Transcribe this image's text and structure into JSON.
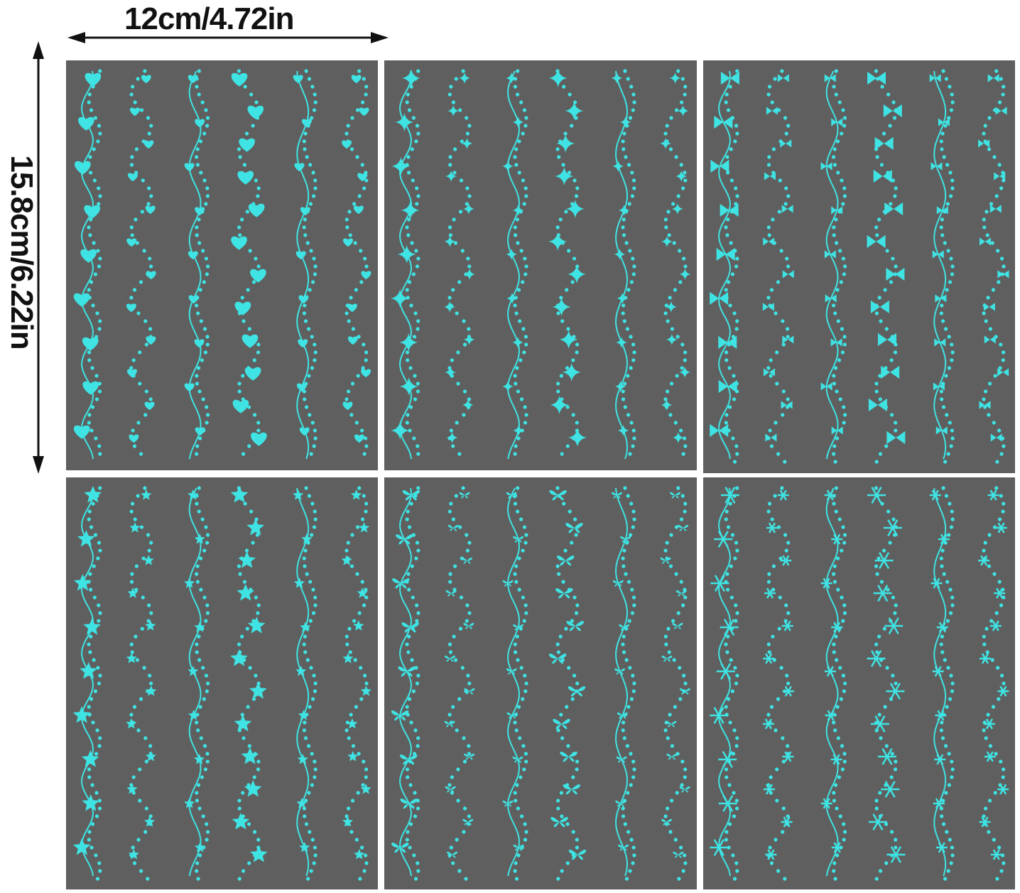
{
  "dimensions": {
    "width_label": "12cm/4.72in",
    "height_label": "15.8cm/6.22in"
  },
  "colors": {
    "sheet": "#5f5f5f",
    "ink": "#3fe3e3",
    "text": "#111111"
  },
  "panels": [
    {
      "motif": "heart-icon"
    },
    {
      "motif": "sparkle-star-icon"
    },
    {
      "motif": "bow-icon"
    },
    {
      "motif": "star-icon"
    },
    {
      "motif": "butterfly-icon"
    },
    {
      "motif": "snowflake-icon"
    }
  ]
}
